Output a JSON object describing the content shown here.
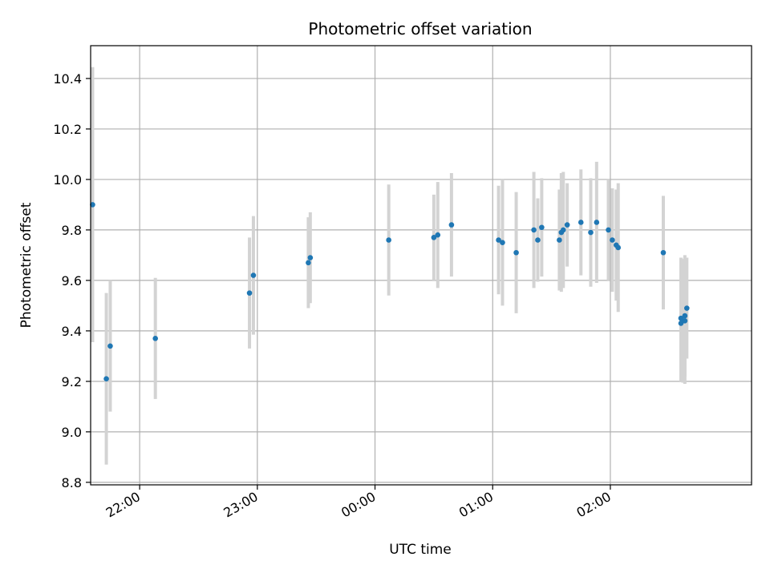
{
  "chart_data": {
    "type": "scatter",
    "title": "Photometric offset variation",
    "xlabel": "UTC time",
    "ylabel": "Photometric offset",
    "grid": true,
    "x_ticks": [
      "22:00",
      "23:00",
      "00:00",
      "01:00",
      "02:00"
    ],
    "y_ticks": [
      "8.8",
      "9.0",
      "9.2",
      "9.4",
      "9.6",
      "9.8",
      "10.0",
      "10.2",
      "10.4"
    ],
    "xlim": [
      "21:35",
      "03:12"
    ],
    "ylim": [
      8.79,
      10.53
    ],
    "colors": {
      "point": "#1f77b4",
      "errorbar": "#d3d3d3",
      "grid": "#b0b0b0"
    },
    "series": [
      {
        "points": [
          {
            "x": "21:36",
            "y": 9.9,
            "err": 0.545
          },
          {
            "x": "21:43",
            "y": 9.21,
            "err": 0.34
          },
          {
            "x": "21:45",
            "y": 9.34,
            "err": 0.26
          },
          {
            "x": "22:08",
            "y": 9.37,
            "err": 0.24
          },
          {
            "x": "22:56",
            "y": 9.55,
            "err": 0.22
          },
          {
            "x": "22:58",
            "y": 9.62,
            "err": 0.235
          },
          {
            "x": "23:26",
            "y": 9.67,
            "err": 0.18
          },
          {
            "x": "23:27",
            "y": 9.69,
            "err": 0.18
          },
          {
            "x": "00:07",
            "y": 9.76,
            "err": 0.22
          },
          {
            "x": "00:30",
            "y": 9.77,
            "err": 0.17
          },
          {
            "x": "00:32",
            "y": 9.78,
            "err": 0.21
          },
          {
            "x": "00:39",
            "y": 9.82,
            "err": 0.205
          },
          {
            "x": "01:03",
            "y": 9.76,
            "err": 0.215
          },
          {
            "x": "01:05",
            "y": 9.75,
            "err": 0.25
          },
          {
            "x": "01:12",
            "y": 9.71,
            "err": 0.24
          },
          {
            "x": "01:21",
            "y": 9.8,
            "err": 0.23
          },
          {
            "x": "01:23",
            "y": 9.76,
            "err": 0.165
          },
          {
            "x": "01:25",
            "y": 9.81,
            "err": 0.195
          },
          {
            "x": "01:34",
            "y": 9.76,
            "err": 0.2
          },
          {
            "x": "01:35",
            "y": 9.79,
            "err": 0.235
          },
          {
            "x": "01:36",
            "y": 9.8,
            "err": 0.23
          },
          {
            "x": "01:38",
            "y": 9.82,
            "err": 0.165
          },
          {
            "x": "01:45",
            "y": 9.83,
            "err": 0.21
          },
          {
            "x": "01:50",
            "y": 9.79,
            "err": 0.215
          },
          {
            "x": "01:53",
            "y": 9.83,
            "err": 0.24
          },
          {
            "x": "01:59",
            "y": 9.8,
            "err": 0.2
          },
          {
            "x": "02:01",
            "y": 9.76,
            "err": 0.205
          },
          {
            "x": "02:03",
            "y": 9.74,
            "err": 0.22
          },
          {
            "x": "02:04",
            "y": 9.73,
            "err": 0.255
          },
          {
            "x": "02:27",
            "y": 9.71,
            "err": 0.225
          },
          {
            "x": "02:36",
            "y": 9.45,
            "err": 0.24
          },
          {
            "x": "02:36",
            "y": 9.43,
            "err": 0.23
          },
          {
            "x": "02:37",
            "y": 9.44,
            "err": 0.245
          },
          {
            "x": "02:38",
            "y": 9.46,
            "err": 0.24
          },
          {
            "x": "02:38",
            "y": 9.44,
            "err": 0.25
          },
          {
            "x": "02:39",
            "y": 9.49,
            "err": 0.2
          }
        ]
      }
    ]
  }
}
